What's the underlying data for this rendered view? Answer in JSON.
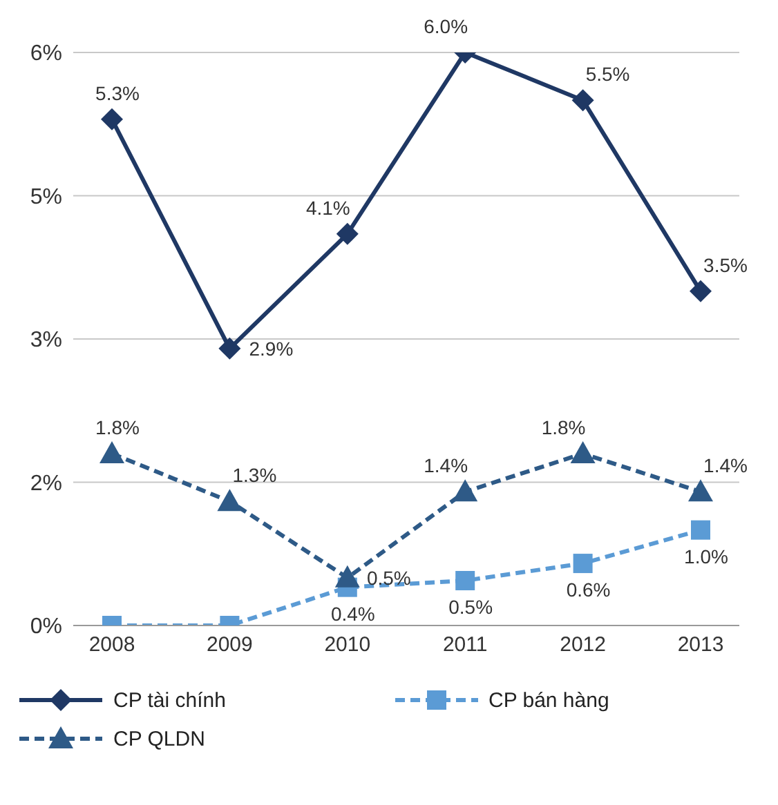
{
  "chart_data": {
    "type": "line",
    "categories": [
      "2008",
      "2009",
      "2010",
      "2011",
      "2012",
      "2013"
    ],
    "series": [
      {
        "name": "CP tài chính",
        "color": "#1f3864",
        "marker": "diamond",
        "line_style": "solid",
        "values": [
          5.3,
          2.9,
          4.1,
          6.0,
          5.5,
          3.5
        ],
        "value_labels": [
          "5.3%",
          "2.9%",
          "4.1%",
          "6.0%",
          "5.5%",
          "3.5%"
        ]
      },
      {
        "name": "CP bán hàng",
        "color": "#5b9bd5",
        "marker": "square",
        "line_style": "dashed",
        "values": [
          0,
          0,
          0.4,
          0.47,
          0.65,
          1.0
        ],
        "value_labels": [
          null,
          null,
          "0.4%",
          "0.5%",
          "0.6%",
          "1.0%"
        ]
      },
      {
        "name": "CP QLDN",
        "color": "#2e5a87",
        "marker": "triangle",
        "line_style": "dashed",
        "values": [
          1.8,
          1.3,
          0.5,
          1.4,
          1.8,
          1.4
        ],
        "value_labels": [
          "1.8%",
          "1.3%",
          "0.5%",
          "1.4%",
          "1.8%",
          "1.4%"
        ]
      }
    ],
    "ylim": [
      0,
      6
    ],
    "yticks": [
      {
        "value": 0,
        "label": "0%"
      },
      {
        "value": 1.5,
        "label": "2%"
      },
      {
        "value": 3,
        "label": "3%"
      },
      {
        "value": 4.5,
        "label": "5%"
      },
      {
        "value": 6,
        "label": "6%"
      }
    ],
    "grid": "y",
    "legend": "bottom"
  }
}
